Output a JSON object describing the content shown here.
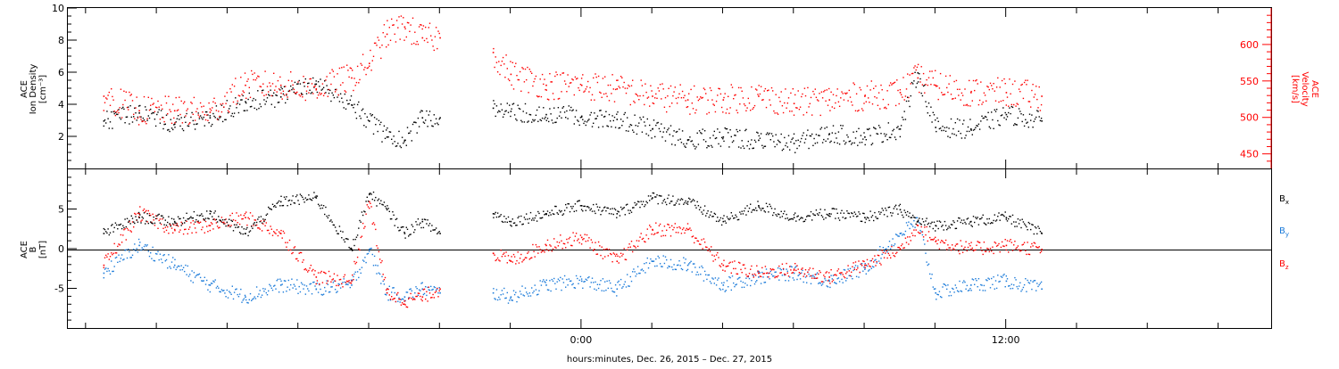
{
  "chart_data": [
    {
      "type": "scatter",
      "panel": "top",
      "left_axis": {
        "label_lines": [
          "ACE",
          "Ion Density",
          "[cm⁻³]"
        ],
        "ylim": [
          0,
          10
        ],
        "ticks": [
          2,
          4,
          6,
          8,
          10
        ],
        "color": "#000000"
      },
      "right_axis": {
        "label_lines": [
          "ACE",
          "Velocity",
          "[km/s]"
        ],
        "ylim": [
          430,
          650
        ],
        "ticks": [
          450,
          500,
          550,
          600
        ],
        "color": "#ff0000"
      },
      "series": [
        {
          "axis": "left",
          "color": "#000000",
          "x": [
            -13.5,
            -12.5,
            -11.5,
            -10.5,
            -9.5,
            -8.5,
            -7.5,
            -6.5,
            -6.0,
            -5.5,
            -5.0,
            -4.5,
            -4.0,
            -2.5,
            -2.0,
            -1.0,
            0.0,
            1.0,
            2.0,
            3.0,
            4.0,
            5.0,
            6.0,
            7.0,
            8.0,
            9.0,
            9.5,
            10.0,
            11.0,
            12.0,
            13.0
          ],
          "y": [
            3.0,
            3.5,
            2.8,
            3.2,
            4.2,
            4.5,
            5.3,
            4.0,
            3.0,
            2.0,
            1.8,
            3.2,
            3.2,
            3.8,
            3.6,
            3.4,
            3.3,
            3.1,
            2.5,
            1.8,
            2.0,
            1.8,
            1.6,
            2.2,
            2.0,
            2.5,
            6.0,
            2.6,
            2.5,
            3.4,
            3.0
          ]
        },
        {
          "axis": "right",
          "color": "#ff0000",
          "x": [
            -13.5,
            -12.5,
            -11.5,
            -10.5,
            -9.5,
            -8.5,
            -7.5,
            -6.5,
            -6.0,
            -5.5,
            -5.0,
            -4.5,
            -4.0,
            -2.5,
            -2.0,
            -1.0,
            0.0,
            1.0,
            2.0,
            3.0,
            4.0,
            5.0,
            6.0,
            7.0,
            8.0,
            9.0,
            9.5,
            10.0,
            11.0,
            12.0,
            13.0
          ],
          "y": [
            530,
            510,
            510,
            508,
            545,
            545,
            540,
            555,
            575,
            615,
            625,
            610,
            610,
            590,
            560,
            545,
            545,
            540,
            530,
            525,
            525,
            530,
            520,
            525,
            530,
            535,
            555,
            545,
            535,
            535,
            530
          ]
        }
      ]
    },
    {
      "type": "scatter",
      "panel": "bottom",
      "left_axis": {
        "label_lines": [
          "ACE",
          "B",
          "[nT]"
        ],
        "ylim": [
          -10,
          10
        ],
        "ticks": [
          -5,
          0,
          5
        ],
        "color": "#000000"
      },
      "legend": [
        {
          "label": "B",
          "sub": "x",
          "color": "#000000"
        },
        {
          "label": "B",
          "sub": "y",
          "color": "#1a7ad9"
        },
        {
          "label": "B",
          "sub": "z",
          "color": "#ff0000"
        }
      ],
      "series": [
        {
          "name": "Bx",
          "color": "#000000",
          "x": [
            -13.5,
            -12.5,
            -11.5,
            -10.5,
            -9.5,
            -8.5,
            -7.5,
            -6.5,
            -6.0,
            -5.5,
            -5.0,
            -4.5,
            -4.0,
            -2.5,
            -2.0,
            -1.0,
            0.0,
            1.0,
            2.0,
            3.0,
            4.0,
            5.0,
            6.0,
            7.0,
            8.0,
            9.0,
            9.5,
            10.0,
            11.0,
            12.0,
            13.0
          ],
          "y": [
            2.0,
            4.0,
            3.5,
            4.5,
            2.0,
            6.0,
            6.5,
            0.0,
            7.0,
            5.0,
            2.0,
            3.5,
            2.0,
            4.5,
            3.5,
            4.5,
            5.5,
            4.5,
            6.5,
            6.0,
            3.5,
            5.5,
            4.0,
            4.5,
            4.0,
            5.0,
            3.5,
            3.0,
            3.5,
            4.0,
            2.0
          ]
        },
        {
          "name": "By",
          "color": "#1a7ad9",
          "x": [
            -13.5,
            -12.5,
            -11.5,
            -10.5,
            -9.5,
            -8.5,
            -7.5,
            -6.5,
            -6.0,
            -5.5,
            -5.0,
            -4.5,
            -4.0,
            -2.5,
            -2.0,
            -1.0,
            0.0,
            1.0,
            2.0,
            3.0,
            4.0,
            5.0,
            6.0,
            7.0,
            8.0,
            9.0,
            9.5,
            10.0,
            11.0,
            12.0,
            13.0
          ],
          "y": [
            -3.0,
            0.5,
            -2.0,
            -4.5,
            -6.0,
            -4.5,
            -5.0,
            -4.5,
            0.0,
            -5.5,
            -6.0,
            -5.0,
            -5.5,
            -5.5,
            -6.0,
            -4.5,
            -4.0,
            -5.0,
            -1.5,
            -2.0,
            -4.5,
            -3.5,
            -3.0,
            -4.0,
            -2.5,
            2.0,
            3.5,
            -5.5,
            -4.5,
            -4.0,
            -5.0
          ]
        },
        {
          "name": "Bz",
          "color": "#ff0000",
          "x": [
            -13.5,
            -12.5,
            -11.5,
            -10.5,
            -9.5,
            -8.5,
            -7.5,
            -6.5,
            -6.0,
            -5.5,
            -5.0,
            -4.5,
            -4.0,
            -2.5,
            -2.0,
            -1.0,
            0.0,
            1.0,
            2.0,
            3.0,
            4.0,
            5.0,
            6.0,
            7.0,
            8.0,
            9.0,
            9.5,
            10.0,
            11.0,
            12.0,
            13.0
          ],
          "y": [
            -2.0,
            4.5,
            2.5,
            3.0,
            4.0,
            2.0,
            -3.5,
            -4.0,
            6.0,
            -5.5,
            -6.5,
            -6.0,
            -5.0,
            -0.5,
            -1.5,
            0.5,
            1.5,
            -1.5,
            2.5,
            2.5,
            -2.0,
            -3.0,
            -2.5,
            -3.5,
            -2.0,
            0.0,
            3.0,
            1.0,
            0.0,
            0.5,
            0.0
          ]
        }
      ]
    }
  ],
  "x_axis": {
    "xlim": [
      -14.5,
      19.5
    ],
    "major_ticks": [
      0,
      12
    ],
    "tick_labels": [
      "0:00",
      "12:00"
    ],
    "minor_step_hours": 2,
    "label": "hours:minutes, Dec. 26, 2015 – Dec. 27, 2015",
    "data_gap": [
      -4.0,
      -2.5
    ]
  }
}
